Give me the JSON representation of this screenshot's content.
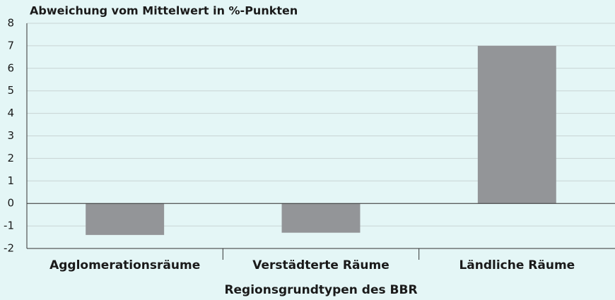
{
  "chart_data": {
    "type": "bar",
    "title": "Abweichung vom Mittelwert in %-Punkten",
    "x_label": "Regionsgrundtypen des BBR",
    "categories": [
      "Agglomerationsräume",
      "Verstädterte Räume",
      "Ländliche Räume"
    ],
    "values": [
      -1.4,
      -1.3,
      7.0
    ],
    "color": "#939598",
    "ylim": [
      -2,
      8
    ],
    "yticks": [
      -2,
      -1,
      0,
      1,
      2,
      3,
      4,
      5,
      6,
      7,
      8
    ],
    "grid": true
  }
}
